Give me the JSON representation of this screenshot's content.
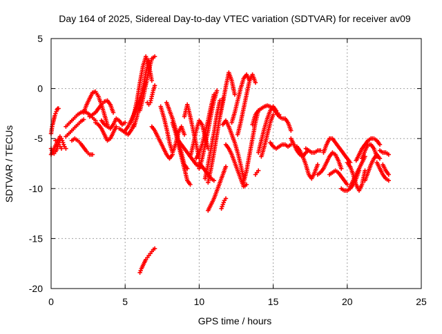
{
  "chart_data": {
    "type": "scatter",
    "title": "Day 164 of 2025, Sidereal Day-to-day VTEC variation (SDTVAR) for receiver av09",
    "xlabel": "GPS time / hours",
    "ylabel": "SDTVAR / TECUs",
    "xlim": [
      0,
      25
    ],
    "ylim": [
      -20,
      5
    ],
    "xticks": [
      0,
      5,
      10,
      15,
      20,
      25
    ],
    "xtick_labels": [
      "0",
      "5",
      "10",
      "15",
      "20",
      "25"
    ],
    "yticks": [
      5,
      0,
      -5,
      -10,
      -15,
      -20
    ],
    "ytick_labels": [
      "5",
      "0",
      "-5",
      "-10",
      "-15",
      "-20"
    ],
    "grid": true,
    "marker": "plus",
    "color": "#ff0000",
    "series": [
      {
        "name": "t1",
        "x": [
          0.0,
          0.05,
          0.1,
          0.15,
          0.2,
          0.25,
          0.3,
          0.35,
          0.4,
          0.45,
          0.5
        ],
        "y": [
          -4.5,
          -4.0,
          -3.6,
          -3.3,
          -3.0,
          -2.7,
          -2.5,
          -2.3,
          -2.1,
          -2.0,
          -2.0
        ]
      },
      {
        "name": "t2",
        "x": [
          0.0,
          0.1,
          0.2,
          0.3,
          0.4,
          0.5,
          0.6
        ],
        "y": [
          -6.6,
          -6.3,
          -6.0,
          -5.7,
          -5.4,
          -5.1,
          -4.8
        ]
      },
      {
        "name": "t3",
        "x": [
          0.0,
          0.1,
          0.2,
          0.3,
          0.4,
          0.5,
          0.6,
          0.7,
          0.8,
          0.9,
          1.0
        ],
        "y": [
          -6.0,
          -6.4,
          -6.5,
          -6.3,
          -6.0,
          -5.6,
          -5.2,
          -5.0,
          -5.4,
          -5.8,
          -6.0
        ]
      },
      {
        "name": "t4",
        "x": [
          0.3,
          0.4,
          0.5,
          0.6,
          0.7
        ],
        "y": [
          -5.2,
          -5.4,
          -5.6,
          -5.8,
          -6.0
        ]
      },
      {
        "name": "t5",
        "x": [
          1.0,
          1.2,
          1.4,
          1.6,
          1.8,
          2.0,
          2.2,
          2.4,
          2.6,
          2.8,
          3.0
        ],
        "y": [
          -3.8,
          -3.5,
          -3.2,
          -2.9,
          -2.6,
          -2.4,
          -2.3,
          -2.4,
          -2.6,
          -2.9,
          -3.2
        ]
      },
      {
        "name": "t6",
        "x": [
          1.0,
          1.2,
          1.4,
          1.6,
          1.8,
          2.0,
          2.2
        ],
        "y": [
          -4.8,
          -4.5,
          -4.2,
          -3.9,
          -3.6,
          -3.3,
          -3.1
        ]
      },
      {
        "name": "t7",
        "x": [
          1.4,
          1.6,
          1.8,
          2.0,
          2.2,
          2.4,
          2.6,
          2.8
        ],
        "y": [
          -5.2,
          -5.0,
          -5.2,
          -5.5,
          -5.9,
          -6.3,
          -6.6,
          -6.6
        ]
      },
      {
        "name": "t8",
        "x": [
          2.2,
          2.4,
          2.6,
          2.8,
          3.0,
          3.2,
          3.4,
          3.6,
          3.8
        ],
        "y": [
          -2.4,
          -1.6,
          -1.0,
          -0.4,
          -0.3,
          -0.8,
          -1.6,
          -2.6,
          -3.6
        ]
      },
      {
        "name": "t9",
        "x": [
          2.6,
          2.8,
          3.0,
          3.2,
          3.4,
          3.6,
          3.8,
          4.0,
          4.2
        ],
        "y": [
          -2.8,
          -2.6,
          -2.4,
          -2.0,
          -1.6,
          -1.3,
          -1.2,
          -1.6,
          -2.4
        ]
      },
      {
        "name": "t10",
        "x": [
          3.0,
          3.2,
          3.4,
          3.6,
          3.8,
          4.0,
          4.2,
          4.4
        ],
        "y": [
          -3.4,
          -3.6,
          -4.0,
          -4.6,
          -5.2,
          -5.0,
          -4.4,
          -3.8
        ]
      },
      {
        "name": "t11",
        "x": [
          3.4,
          3.6,
          3.8,
          4.0,
          4.2,
          4.4,
          4.6,
          4.8,
          5.0
        ],
        "y": [
          -3.2,
          -3.6,
          -3.8,
          -4.0,
          -3.6,
          -3.0,
          -3.2,
          -3.6,
          -3.4
        ]
      },
      {
        "name": "t12",
        "x": [
          4.6,
          4.8,
          5.0,
          5.2,
          5.4,
          5.6
        ],
        "y": [
          -4.0,
          -4.2,
          -4.4,
          -4.6,
          -4.2,
          -3.6
        ]
      },
      {
        "name": "t13",
        "x": [
          5.0,
          5.2,
          5.4,
          5.6,
          5.8,
          6.0,
          6.2,
          6.4
        ],
        "y": [
          -4.2,
          -3.8,
          -3.2,
          -2.5,
          -1.8,
          -1.0,
          -0.2,
          0.6
        ]
      },
      {
        "name": "t14",
        "x": [
          5.4,
          5.6,
          5.8,
          6.0,
          6.2,
          6.4,
          6.6,
          6.8
        ],
        "y": [
          -3.4,
          -2.6,
          -1.2,
          0.6,
          2.2,
          3.2,
          2.4,
          0.8
        ]
      },
      {
        "name": "t15",
        "x": [
          5.6,
          5.8,
          6.0,
          6.2,
          6.4,
          6.6
        ],
        "y": [
          -3.8,
          -2.8,
          -1.4,
          0.0,
          1.6,
          2.8
        ]
      },
      {
        "name": "t16",
        "x": [
          6.0,
          6.2,
          6.4,
          6.6,
          6.8,
          7.0
        ],
        "y": [
          -2.2,
          -1.0,
          0.4,
          1.8,
          3.0,
          3.2
        ]
      },
      {
        "name": "t17",
        "x": [
          6.0,
          6.1,
          6.2,
          6.3,
          6.4,
          6.5,
          6.6,
          6.7,
          6.8,
          6.9,
          7.0
        ],
        "y": [
          -18.4,
          -18.0,
          -17.7,
          -17.4,
          -17.1,
          -16.9,
          -16.7,
          -16.5,
          -16.3,
          -16.1,
          -16.0
        ]
      },
      {
        "name": "t18",
        "x": [
          6.5,
          6.6,
          6.7,
          6.8,
          6.9,
          7.0
        ],
        "y": [
          -1.4,
          -1.6,
          -1.4,
          -0.8,
          -0.2,
          0.3
        ]
      },
      {
        "name": "t19",
        "x": [
          6.8,
          7.0,
          7.2,
          7.4,
          7.6,
          7.8,
          8.0,
          8.2
        ],
        "y": [
          -3.8,
          -4.2,
          -4.8,
          -5.4,
          -6.0,
          -6.6,
          -7.0,
          -6.6
        ]
      },
      {
        "name": "t20",
        "x": [
          7.4,
          7.6,
          7.8,
          8.0,
          8.2,
          8.4,
          8.6,
          8.8,
          9.0
        ],
        "y": [
          -1.8,
          -2.8,
          -4.0,
          -5.4,
          -6.4,
          -5.6,
          -4.4,
          -3.8,
          -4.6
        ]
      },
      {
        "name": "t21",
        "x": [
          7.8,
          8.0,
          8.2,
          8.4,
          8.6,
          8.8,
          9.0,
          9.2
        ],
        "y": [
          -1.4,
          -2.2,
          -3.0,
          -4.0,
          -5.2,
          -6.4,
          -7.6,
          -8.0
        ]
      },
      {
        "name": "t22",
        "x": [
          8.2,
          8.4,
          8.6,
          8.8,
          9.0,
          9.2,
          9.4
        ],
        "y": [
          -3.4,
          -4.4,
          -5.6,
          -6.8,
          -8.0,
          -9.2,
          -9.6
        ]
      },
      {
        "name": "t23",
        "x": [
          8.6,
          8.8,
          9.0,
          9.2,
          9.4,
          9.6,
          9.8,
          10.0,
          10.2
        ],
        "y": [
          -5.2,
          -5.6,
          -6.0,
          -6.4,
          -6.8,
          -7.2,
          -7.6,
          -7.8,
          -7.8
        ]
      },
      {
        "name": "t24",
        "x": [
          9.0,
          9.2,
          9.4,
          9.6,
          9.8,
          10.0
        ],
        "y": [
          -2.8,
          -1.6,
          -2.8,
          -4.2,
          -5.6,
          -7.0
        ]
      },
      {
        "name": "t25",
        "x": [
          9.4,
          9.6,
          9.8,
          10.0,
          10.2,
          10.4,
          10.6
        ],
        "y": [
          -6.8,
          -5.6,
          -4.2,
          -3.2,
          -3.6,
          -4.8,
          -6.0
        ]
      },
      {
        "name": "t26",
        "x": [
          9.8,
          10.0,
          10.2,
          10.4,
          10.6,
          10.8,
          11.0
        ],
        "y": [
          -7.0,
          -6.4,
          -5.6,
          -4.4,
          -3.2,
          -1.8,
          -0.6
        ]
      },
      {
        "name": "t27",
        "x": [
          10.0,
          10.2,
          10.4,
          10.6,
          10.8,
          11.0,
          11.2
        ],
        "y": [
          -8.0,
          -7.0,
          -5.6,
          -4.2,
          -2.6,
          -1.2,
          -0.2
        ]
      },
      {
        "name": "t28",
        "x": [
          10.4,
          10.6,
          10.8,
          11.0,
          11.2,
          11.4
        ],
        "y": [
          -9.0,
          -7.6,
          -6.0,
          -4.4,
          -2.6,
          -1.2
        ]
      },
      {
        "name": "t29",
        "x": [
          10.6,
          10.8,
          11.0,
          11.2,
          11.4,
          11.6
        ],
        "y": [
          -9.4,
          -8.0,
          -6.4,
          -4.6,
          -2.8,
          -1.0
        ]
      },
      {
        "name": "t30",
        "x": [
          10.0,
          10.2,
          10.4,
          10.6,
          10.8,
          11.0
        ],
        "y": [
          -7.4,
          -7.8,
          -8.2,
          -8.6,
          -9.0,
          -9.2
        ]
      },
      {
        "name": "t31",
        "x": [
          10.6,
          10.8,
          11.0,
          11.2,
          11.4,
          11.6,
          11.8
        ],
        "y": [
          -12.2,
          -11.6,
          -11.0,
          -10.2,
          -9.4,
          -8.6,
          -7.8
        ]
      },
      {
        "name": "t32",
        "x": [
          11.5,
          11.6,
          11.7,
          11.8
        ],
        "y": [
          -12.0,
          -11.6,
          -11.2,
          -11.0
        ]
      },
      {
        "name": "t33",
        "x": [
          11.4,
          11.6,
          11.8,
          12.0,
          12.2,
          12.4
        ],
        "y": [
          -2.8,
          -1.4,
          0.2,
          1.6,
          0.8,
          -0.6
        ]
      },
      {
        "name": "t34",
        "x": [
          11.6,
          11.8,
          12.0,
          12.2,
          12.4,
          12.6,
          12.8,
          13.0
        ],
        "y": [
          -3.6,
          -3.2,
          -3.8,
          -4.6,
          -5.4,
          -6.4,
          -7.6,
          -9.0
        ]
      },
      {
        "name": "t35",
        "x": [
          11.8,
          12.0,
          12.2,
          12.4,
          12.6,
          12.8,
          13.0,
          13.2
        ],
        "y": [
          -5.6,
          -6.0,
          -6.6,
          -7.4,
          -8.2,
          -9.0,
          -9.8,
          -9.6
        ]
      },
      {
        "name": "t36",
        "x": [
          12.2,
          12.4,
          12.6,
          12.8,
          13.0,
          13.2,
          13.4
        ],
        "y": [
          -3.4,
          -2.4,
          -1.2,
          0.0,
          1.0,
          1.4,
          0.8
        ]
      },
      {
        "name": "t37",
        "x": [
          12.6,
          12.8,
          13.0,
          13.2,
          13.4,
          13.6,
          13.8
        ],
        "y": [
          -4.6,
          -3.4,
          -2.0,
          -0.6,
          0.8,
          1.4,
          0.6
        ]
      },
      {
        "name": "t38",
        "x": [
          13.0,
          13.2,
          13.4,
          13.6,
          13.8,
          14.0
        ],
        "y": [
          -9.4,
          -8.2,
          -6.6,
          -5.0,
          -3.4,
          -2.2
        ]
      },
      {
        "name": "t39",
        "x": [
          13.8,
          13.9,
          14.0
        ],
        "y": [
          -8.6,
          -8.4,
          -8.2
        ]
      },
      {
        "name": "t40",
        "x": [
          13.6,
          13.8,
          14.0,
          14.2,
          14.4,
          14.6,
          14.8,
          15.0,
          15.2,
          15.4
        ],
        "y": [
          -3.6,
          -2.6,
          -2.2,
          -2.0,
          -1.8,
          -1.7,
          -1.8,
          -2.0,
          -2.3,
          -2.6
        ]
      },
      {
        "name": "t41",
        "x": [
          14.0,
          14.2,
          14.4,
          14.6,
          14.8,
          15.0,
          15.2
        ],
        "y": [
          -6.4,
          -5.2,
          -4.0,
          -3.0,
          -2.2,
          -1.8,
          -2.2
        ]
      },
      {
        "name": "t42",
        "x": [
          14.2,
          14.4,
          14.6,
          14.8,
          15.0
        ],
        "y": [
          -6.8,
          -5.8,
          -4.6,
          -3.4,
          -2.6
        ]
      },
      {
        "name": "t43",
        "x": [
          15.0,
          15.2,
          15.4,
          15.6,
          15.8,
          16.0,
          16.2
        ],
        "y": [
          -2.0,
          -2.4,
          -2.8,
          -3.0,
          -3.0,
          -3.4,
          -4.2
        ]
      },
      {
        "name": "t44",
        "x": [
          14.8,
          15.0,
          15.2,
          15.4,
          15.6,
          15.8,
          16.0,
          16.2
        ],
        "y": [
          -5.4,
          -5.8,
          -6.0,
          -5.8,
          -5.6,
          -5.6,
          -5.8,
          -5.6
        ]
      },
      {
        "name": "t45",
        "x": [
          16.2,
          16.4,
          16.6,
          16.8,
          17.0,
          17.2,
          17.4
        ],
        "y": [
          -5.0,
          -5.6,
          -6.2,
          -6.6,
          -6.8,
          -6.4,
          -6.2
        ]
      },
      {
        "name": "t46",
        "x": [
          16.6,
          16.8,
          17.0,
          17.2,
          17.4,
          17.6,
          17.8,
          18.0
        ],
        "y": [
          -5.8,
          -6.2,
          -6.8,
          -7.6,
          -8.6,
          -9.0,
          -8.4,
          -7.6
        ]
      },
      {
        "name": "t47",
        "x": [
          17.2,
          17.4,
          17.6,
          17.8,
          18.0,
          18.2
        ],
        "y": [
          -6.0,
          -6.2,
          -6.4,
          -6.4,
          -6.2,
          -6.2
        ]
      },
      {
        "name": "t48",
        "x": [
          18.0,
          18.2,
          18.4,
          18.6,
          18.8,
          19.0,
          19.2,
          19.4,
          19.6
        ],
        "y": [
          -8.6,
          -8.4,
          -8.0,
          -7.4,
          -6.8,
          -6.4,
          -6.6,
          -7.2,
          -8.0
        ]
      },
      {
        "name": "t49",
        "x": [
          18.4,
          18.6,
          18.8,
          19.0,
          19.2,
          19.4,
          19.6,
          19.8,
          20.0,
          20.2
        ],
        "y": [
          -6.4,
          -5.6,
          -5.0,
          -5.0,
          -5.4,
          -5.8,
          -6.2,
          -6.6,
          -7.0,
          -7.4
        ]
      },
      {
        "name": "t50",
        "x": [
          18.8,
          19.0,
          19.2,
          19.4,
          19.6,
          19.8,
          20.0
        ],
        "y": [
          -8.6,
          -8.4,
          -8.2,
          -8.4,
          -8.8,
          -9.2,
          -9.6
        ]
      },
      {
        "name": "t51",
        "x": [
          19.6,
          19.8,
          20.0,
          20.2,
          20.4,
          20.6,
          20.8
        ],
        "y": [
          -10.0,
          -10.2,
          -10.2,
          -10.0,
          -9.6,
          -9.0,
          -8.2
        ]
      },
      {
        "name": "t52",
        "x": [
          20.0,
          20.2,
          20.4,
          20.6,
          20.8,
          21.0,
          21.2
        ],
        "y": [
          -7.4,
          -7.8,
          -8.6,
          -9.6,
          -10.2,
          -9.6,
          -8.2
        ]
      },
      {
        "name": "t53",
        "x": [
          20.2,
          20.4,
          20.6,
          20.8,
          21.0,
          21.2
        ],
        "y": [
          -9.8,
          -9.2,
          -8.6,
          -8.0,
          -7.4,
          -6.8
        ]
      },
      {
        "name": "t54",
        "x": [
          20.6,
          20.8,
          21.0,
          21.2,
          21.4,
          21.6,
          21.8,
          22.0,
          22.2
        ],
        "y": [
          -7.2,
          -6.6,
          -6.0,
          -5.6,
          -5.2,
          -5.0,
          -5.0,
          -5.2,
          -5.6
        ]
      },
      {
        "name": "t55",
        "x": [
          21.0,
          21.2,
          21.4,
          21.6,
          21.8,
          22.0
        ],
        "y": [
          -7.0,
          -6.2,
          -5.6,
          -5.6,
          -6.0,
          -6.8
        ]
      },
      {
        "name": "t56",
        "x": [
          21.2,
          21.4,
          21.6,
          21.8,
          22.0,
          22.2
        ],
        "y": [
          -9.2,
          -8.4,
          -7.6,
          -7.0,
          -6.6,
          -7.0
        ]
      },
      {
        "name": "t57",
        "x": [
          22.0,
          22.2,
          22.4,
          22.6,
          22.8
        ],
        "y": [
          -7.4,
          -8.0,
          -8.6,
          -9.0,
          -9.2
        ]
      },
      {
        "name": "t58",
        "x": [
          22.2,
          22.4,
          22.6,
          22.8
        ],
        "y": [
          -6.2,
          -6.4,
          -6.4,
          -6.6
        ]
      },
      {
        "name": "t59",
        "x": [
          22.4,
          22.6,
          22.8
        ],
        "y": [
          -7.6,
          -8.2,
          -8.6
        ]
      }
    ]
  }
}
